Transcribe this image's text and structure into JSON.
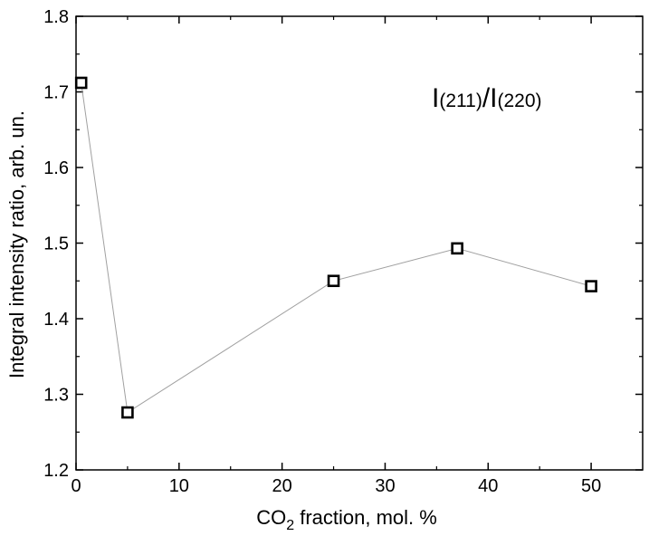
{
  "chart_data": {
    "type": "scatter",
    "xlabel": {
      "prefix": "CO",
      "subscript": "2",
      "suffix": " fraction, mol. %"
    },
    "ylabel": "Integral intensity ratio, arb. un.",
    "xlim": [
      0,
      55
    ],
    "ylim": [
      1.2,
      1.8
    ],
    "x_ticks": [
      0,
      10,
      20,
      30,
      40,
      50
    ],
    "x_tick_labels": [
      "0",
      "10",
      "20",
      "30",
      "40",
      "50"
    ],
    "y_ticks": [
      1.2,
      1.3,
      1.4,
      1.5,
      1.6,
      1.7,
      1.8
    ],
    "y_tick_labels": [
      "1.2",
      "1.3",
      "1.4",
      "1.5",
      "1.6",
      "1.7",
      "1.8"
    ],
    "grid": false,
    "legend": "none",
    "annotation": {
      "parts": [
        "I",
        "(211)",
        "/",
        "I",
        "(220)"
      ],
      "position": "top-right"
    },
    "marker": "open-square",
    "line_color": "#a0a0a0",
    "marker_color": "#000000",
    "series": [
      {
        "x": [
          0.5,
          5,
          25,
          37,
          50
        ],
        "y": [
          1.712,
          1.276,
          1.45,
          1.493,
          1.443
        ]
      }
    ]
  }
}
